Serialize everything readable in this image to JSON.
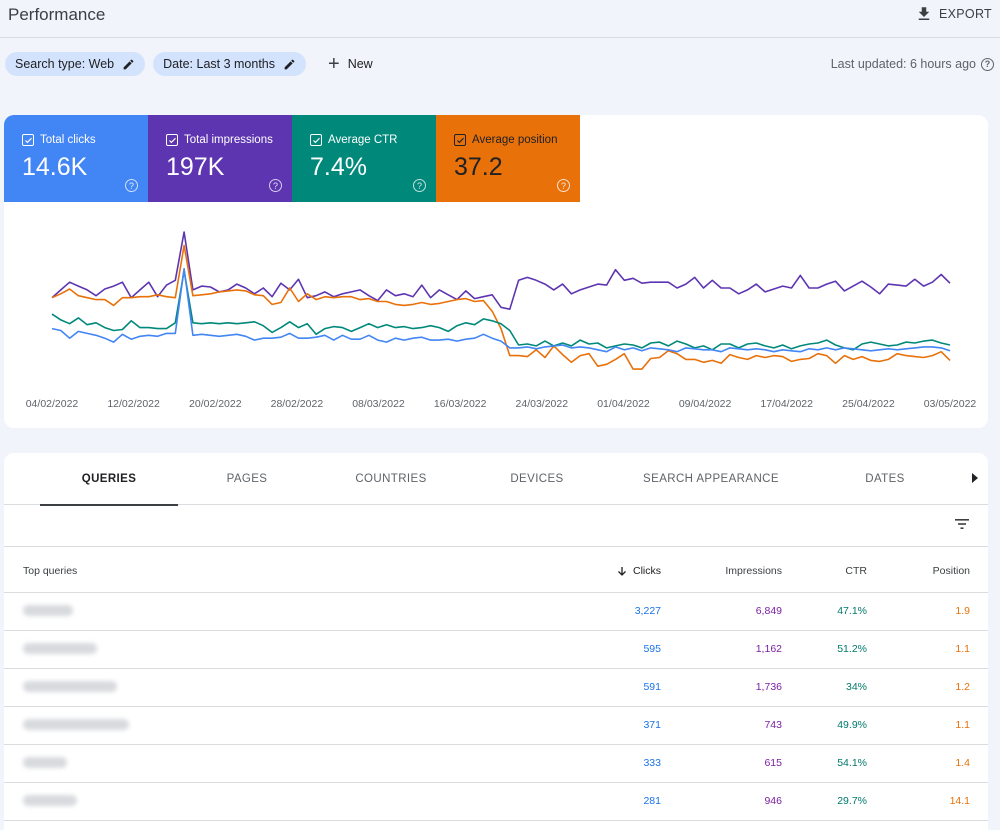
{
  "header": {
    "title": "Performance",
    "export_label": "EXPORT"
  },
  "filters": {
    "search_type": "Search type: Web",
    "date": "Date: Last 3 months",
    "new_label": "New",
    "last_updated": "Last updated: 6 hours ago"
  },
  "metrics": [
    {
      "label": "Total clicks",
      "value": "14.6K",
      "color": "#4285f4"
    },
    {
      "label": "Total impressions",
      "value": "197K",
      "color": "#5e35b1"
    },
    {
      "label": "Average CTR",
      "value": "7.4%",
      "color": "#00897b"
    },
    {
      "label": "Average position",
      "value": "37.2",
      "color": "#e8710a"
    }
  ],
  "chart_data": {
    "type": "line",
    "x_tick_labels": [
      "04/02/2022",
      "12/02/2022",
      "20/02/2022",
      "28/02/2022",
      "08/03/2022",
      "16/03/2022",
      "24/03/2022",
      "01/04/2022",
      "09/04/2022",
      "17/04/2022",
      "25/04/2022",
      "03/05/2022"
    ],
    "grid": false,
    "legend": "metric cards above chart",
    "normalized_note_free": true,
    "series": [
      {
        "name": "Total impressions",
        "color": "#5e35b1",
        "values": [
          0.32,
          0.4,
          0.48,
          0.44,
          0.4,
          0.34,
          0.41,
          0.44,
          0.48,
          0.32,
          0.4,
          0.48,
          0.33,
          0.45,
          0.5,
          1.0,
          0.4,
          0.44,
          0.43,
          0.38,
          0.4,
          0.46,
          0.42,
          0.36,
          0.42,
          0.33,
          0.47,
          0.4,
          0.51,
          0.32,
          0.34,
          0.38,
          0.33,
          0.36,
          0.38,
          0.4,
          0.34,
          0.29,
          0.4,
          0.34,
          0.36,
          0.33,
          0.45,
          0.32,
          0.4,
          0.35,
          0.3,
          0.39,
          0.31,
          0.33,
          0.35,
          0.22,
          0.2,
          0.5,
          0.53,
          0.5,
          0.46,
          0.4,
          0.46,
          0.36,
          0.4,
          0.43,
          0.46,
          0.45,
          0.61,
          0.5,
          0.52,
          0.47,
          0.48,
          0.48,
          0.48,
          0.42,
          0.46,
          0.53,
          0.42,
          0.5,
          0.42,
          0.42,
          0.36,
          0.4,
          0.46,
          0.38,
          0.41,
          0.44,
          0.42,
          0.55,
          0.42,
          0.42,
          0.46,
          0.49,
          0.39,
          0.44,
          0.49,
          0.43,
          0.36,
          0.46,
          0.45,
          0.44,
          0.51,
          0.44,
          0.48,
          0.56,
          0.47
        ]
      },
      {
        "name": "Average position",
        "color": "#e8710a",
        "values": [
          0.32,
          0.36,
          0.41,
          0.34,
          0.32,
          0.3,
          0.3,
          0.24,
          0.32,
          0.32,
          0.33,
          0.33,
          0.35,
          0.33,
          0.32,
          0.86,
          0.34,
          0.35,
          0.36,
          0.38,
          0.39,
          0.4,
          0.39,
          0.35,
          0.34,
          0.25,
          0.27,
          0.42,
          0.28,
          0.36,
          0.3,
          0.33,
          0.32,
          0.33,
          0.33,
          0.3,
          0.31,
          0.28,
          0.28,
          0.25,
          0.24,
          0.25,
          0.27,
          0.25,
          0.26,
          0.28,
          0.3,
          0.31,
          0.28,
          0.29,
          0.18,
          0.0,
          -0.28,
          -0.28,
          -0.29,
          -0.22,
          -0.3,
          -0.18,
          -0.27,
          -0.35,
          -0.28,
          -0.26,
          -0.39,
          -0.37,
          -0.32,
          -0.26,
          -0.42,
          -0.42,
          -0.31,
          -0.3,
          -0.23,
          -0.26,
          -0.32,
          -0.32,
          -0.35,
          -0.33,
          -0.36,
          -0.27,
          -0.3,
          -0.32,
          -0.28,
          -0.3,
          -0.28,
          -0.29,
          -0.34,
          -0.32,
          -0.31,
          -0.26,
          -0.28,
          -0.36,
          -0.28,
          -0.32,
          -0.29,
          -0.33,
          -0.34,
          -0.32,
          -0.26,
          -0.28,
          -0.29,
          -0.3,
          -0.28,
          -0.24,
          -0.33
        ]
      },
      {
        "name": "Average CTR",
        "color": "#00897b",
        "values": [
          0.15,
          0.09,
          0.05,
          0.11,
          0.04,
          0.06,
          0.01,
          -0.02,
          -0.01,
          0.08,
          0.01,
          0.01,
          0.0,
          0.0,
          0.06,
          0.6,
          0.06,
          0.05,
          0.06,
          0.05,
          0.06,
          0.05,
          0.06,
          0.07,
          0.03,
          -0.04,
          0.01,
          0.07,
          0.01,
          0.05,
          -0.06,
          0.0,
          0.02,
          0.01,
          -0.03,
          0.01,
          0.05,
          0.01,
          0.04,
          0.01,
          0.02,
          0.0,
          0.01,
          0.03,
          0.01,
          -0.03,
          0.03,
          0.06,
          0.04,
          0.1,
          0.08,
          0.05,
          -0.02,
          -0.17,
          -0.16,
          -0.18,
          -0.13,
          -0.18,
          -0.15,
          -0.18,
          -0.12,
          -0.16,
          -0.15,
          -0.2,
          -0.18,
          -0.16,
          -0.17,
          -0.2,
          -0.15,
          -0.14,
          -0.18,
          -0.13,
          -0.16,
          -0.2,
          -0.18,
          -0.22,
          -0.16,
          -0.16,
          -0.2,
          -0.16,
          -0.15,
          -0.18,
          -0.2,
          -0.17,
          -0.21,
          -0.18,
          -0.16,
          -0.15,
          -0.12,
          -0.17,
          -0.2,
          -0.22,
          -0.16,
          -0.14,
          -0.16,
          -0.18,
          -0.17,
          -0.14,
          -0.15,
          -0.13,
          -0.12,
          -0.15,
          -0.17
        ]
      },
      {
        "name": "Total clicks",
        "color": "#4285f4",
        "values": [
          0.0,
          -0.02,
          -0.1,
          -0.03,
          -0.05,
          -0.07,
          -0.1,
          -0.14,
          -0.06,
          -0.11,
          -0.08,
          -0.07,
          -0.08,
          -0.05,
          -0.05,
          0.62,
          -0.07,
          -0.06,
          -0.07,
          -0.08,
          -0.07,
          -0.06,
          -0.08,
          -0.12,
          -0.1,
          -0.1,
          -0.09,
          -0.05,
          -0.1,
          -0.1,
          -0.09,
          -0.07,
          -0.12,
          -0.07,
          -0.11,
          -0.11,
          -0.07,
          -0.12,
          -0.14,
          -0.1,
          -0.12,
          -0.1,
          -0.09,
          -0.12,
          -0.12,
          -0.11,
          -0.13,
          -0.11,
          -0.1,
          -0.06,
          -0.1,
          -0.13,
          -0.2,
          -0.2,
          -0.19,
          -0.21,
          -0.19,
          -0.18,
          -0.17,
          -0.2,
          -0.19,
          -0.2,
          -0.22,
          -0.24,
          -0.19,
          -0.22,
          -0.2,
          -0.23,
          -0.2,
          -0.21,
          -0.22,
          -0.24,
          -0.2,
          -0.21,
          -0.22,
          -0.22,
          -0.24,
          -0.2,
          -0.21,
          -0.22,
          -0.21,
          -0.22,
          -0.24,
          -0.22,
          -0.23,
          -0.24,
          -0.21,
          -0.22,
          -0.2,
          -0.22,
          -0.2,
          -0.21,
          -0.22,
          -0.23,
          -0.22,
          -0.21,
          -0.22,
          -0.21,
          -0.2,
          -0.19,
          -0.19,
          -0.2,
          -0.23
        ]
      }
    ]
  },
  "tabs": [
    "QUERIES",
    "PAGES",
    "COUNTRIES",
    "DEVICES",
    "SEARCH APPEARANCE",
    "DATES"
  ],
  "table": {
    "columns": {
      "query": "Top queries",
      "clicks": "Clicks",
      "impressions": "Impressions",
      "ctr": "CTR",
      "position": "Position"
    },
    "rows": [
      {
        "clicks": "3,227",
        "impressions": "6,849",
        "ctr": "47.1%",
        "position": "1.9"
      },
      {
        "clicks": "595",
        "impressions": "1,162",
        "ctr": "51.2%",
        "position": "1.1"
      },
      {
        "clicks": "591",
        "impressions": "1,736",
        "ctr": "34%",
        "position": "1.2"
      },
      {
        "clicks": "371",
        "impressions": "743",
        "ctr": "49.9%",
        "position": "1.1"
      },
      {
        "clicks": "333",
        "impressions": "615",
        "ctr": "54.1%",
        "position": "1.4"
      },
      {
        "clicks": "281",
        "impressions": "946",
        "ctr": "29.7%",
        "position": "14.1"
      }
    ]
  }
}
